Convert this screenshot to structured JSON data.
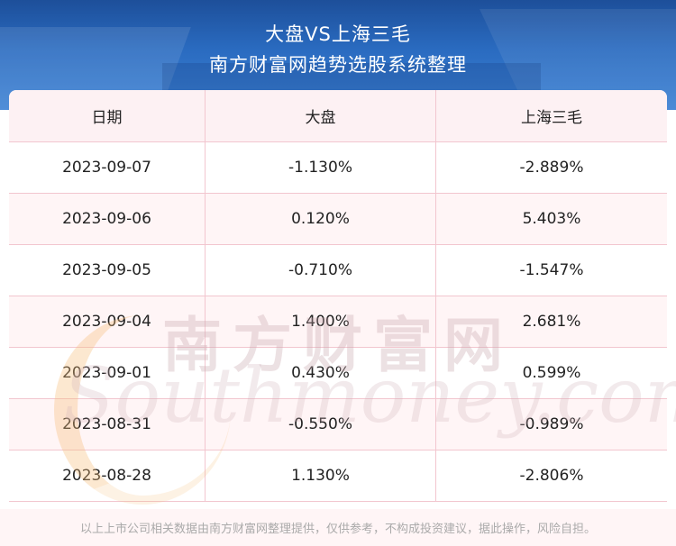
{
  "header": {
    "title": "大盘VS上海三毛",
    "subtitle": "南方财富网趋势选股系统整理"
  },
  "table": {
    "columns": [
      "日期",
      "大盘",
      "上海三毛"
    ],
    "rows": [
      [
        "2023-09-07",
        "-1.130%",
        "-2.889%"
      ],
      [
        "2023-09-06",
        "0.120%",
        "5.403%"
      ],
      [
        "2023-09-05",
        "-0.710%",
        "-1.547%"
      ],
      [
        "2023-09-04",
        "1.400%",
        "2.681%"
      ],
      [
        "2023-09-01",
        "0.430%",
        "0.599%"
      ],
      [
        "2023-08-31",
        "-0.550%",
        "-0.989%"
      ],
      [
        "2023-08-28",
        "1.130%",
        "-2.806%"
      ]
    ]
  },
  "watermark": {
    "cn": "南方财富网",
    "en": "Southmoney.com"
  },
  "footer": {
    "disclaimer": "以上上市公司相关数据由南方财富网整理提供，仅供参考，不构成投资建议，据此操作，风险自担。"
  }
}
